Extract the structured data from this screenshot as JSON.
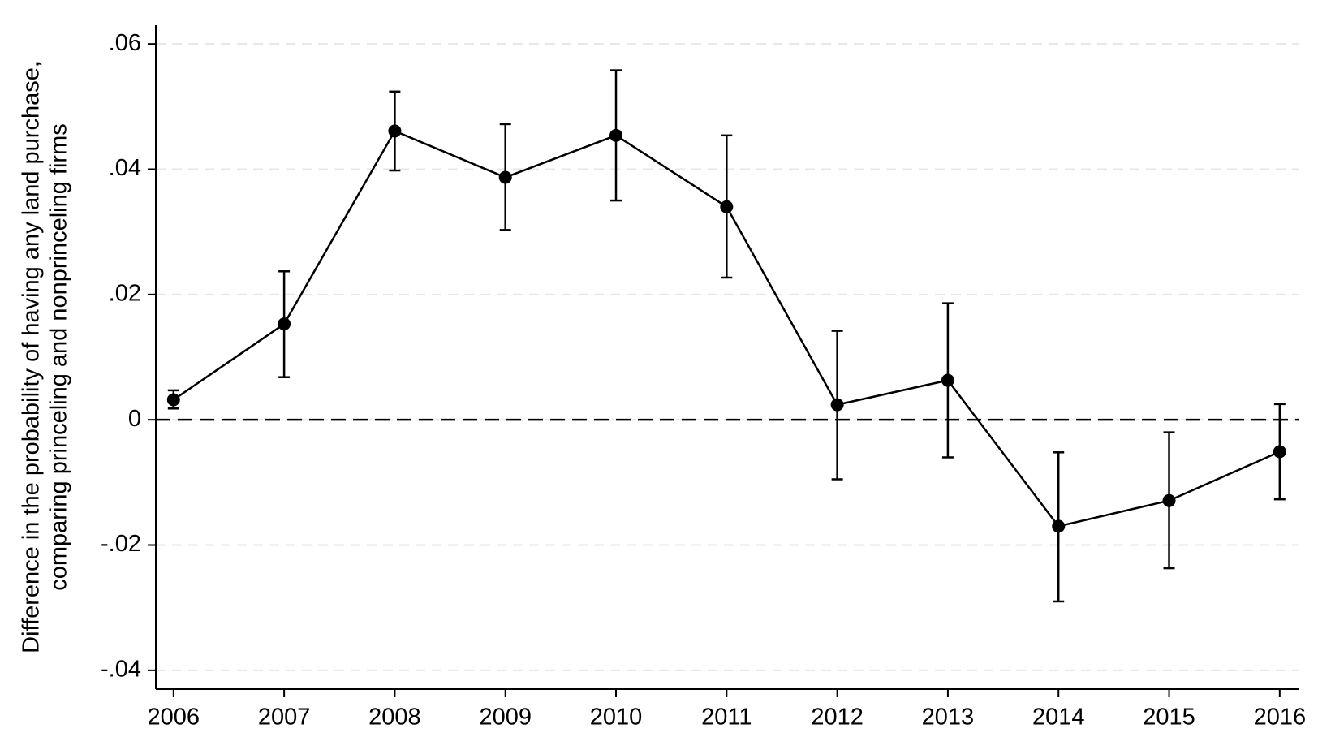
{
  "chart_data": {
    "type": "line",
    "ylabel": [
      "Difference in the probability of having any land purchase,",
      "comparing princeling and nonprinceling firms"
    ],
    "x": [
      2006,
      2007,
      2008,
      2009,
      2010,
      2011,
      2012,
      2013,
      2014,
      2015,
      2016
    ],
    "series": [
      {
        "color": "#000000",
        "values": [
          0.0032,
          0.0153,
          0.0461,
          0.0387,
          0.0454,
          0.034,
          0.0024,
          0.0063,
          -0.017,
          -0.0129,
          -0.0051
        ],
        "lower": [
          0.0018,
          0.0068,
          0.0398,
          0.0303,
          0.035,
          0.0227,
          -0.0095,
          -0.006,
          -0.029,
          -0.0237,
          -0.0127
        ],
        "upper": [
          0.0047,
          0.0237,
          0.0524,
          0.0472,
          0.0558,
          0.0454,
          0.0142,
          0.0186,
          -0.0052,
          -0.002,
          0.0025
        ]
      }
    ],
    "xlim": [
      2005.84,
      2016.17
    ],
    "xticks": [
      2006,
      2007,
      2008,
      2009,
      2010,
      2011,
      2012,
      2013,
      2014,
      2015,
      2016
    ],
    "ylim": [
      -0.043,
      0.063
    ],
    "yticks": [
      {
        "value": -0.04,
        "label": "-.04"
      },
      {
        "value": -0.02,
        "label": "-.02"
      },
      0,
      {
        "value": 0.02,
        "label": ".02"
      },
      {
        "value": 0.04,
        "label": ".04"
      },
      {
        "value": 0.06,
        "label": ".06"
      }
    ],
    "grid": true,
    "reference_line": 0
  }
}
